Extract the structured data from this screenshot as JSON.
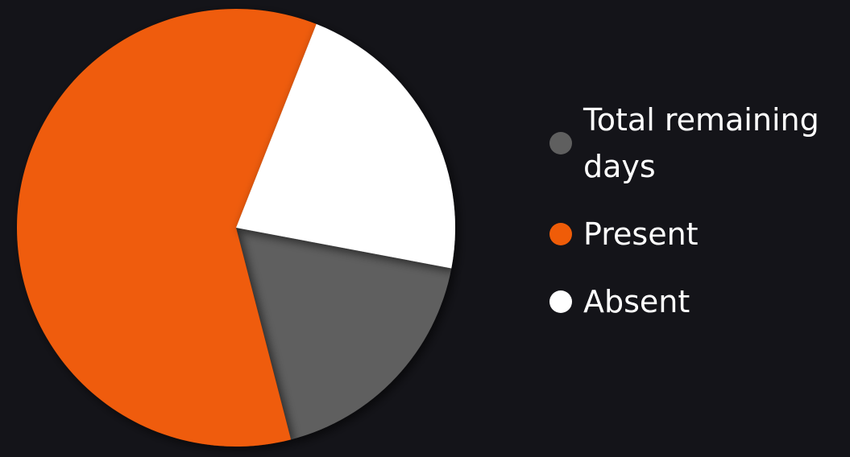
{
  "chart_data": {
    "type": "pie",
    "title": "",
    "labels": [
      "Total remaining days",
      "Present",
      "Absent"
    ],
    "values": [
      18,
      60,
      22
    ],
    "colors": [
      "#5f5f5f",
      "#ef5c08",
      "#ffffff"
    ],
    "legend_placement": "right"
  }
}
